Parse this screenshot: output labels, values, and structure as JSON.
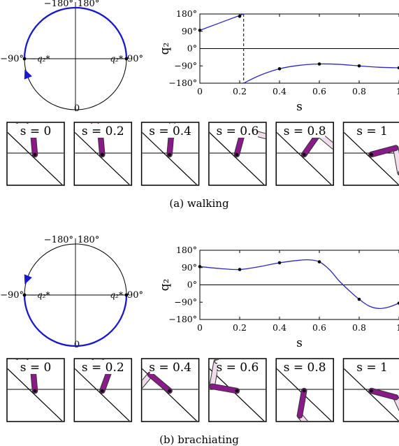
{
  "colors": {
    "trajectory": "#2a2ab8",
    "arrow": "#1818d0",
    "stance_leg": "#8a1a8a",
    "swing_leg": "#f0dcea",
    "leg_outline": "#333333"
  },
  "panels": [
    {
      "caption": "(a) walking",
      "circle": {
        "top_left_label": "−180°",
        "top_right_label": "180°",
        "left_label": "−90°",
        "right_label": "90°",
        "bottom_label": "0",
        "left_point_label": "−q₂*",
        "right_point_label": "q₂*",
        "arc": {
          "from_deg": 90,
          "to_deg": -90,
          "via": "top",
          "arrow_at": "end"
        }
      },
      "chart_data": {
        "type": "line",
        "title": "",
        "xlabel": "s",
        "ylabel": "q₂",
        "xlim": [
          0,
          1
        ],
        "ylim": [
          -180,
          180
        ],
        "xticks": [
          0,
          0.2,
          0.4,
          0.6,
          0.8,
          1
        ],
        "xtick_labels": [
          "0",
          "0.2",
          "0.4",
          "0.6",
          "0.8",
          "1"
        ],
        "yticks": [
          -180,
          -90,
          0,
          90,
          180
        ],
        "ytick_labels": [
          "−180°",
          "−90°",
          "0°",
          "90°",
          "180°"
        ],
        "discontinuity_x": 0.22,
        "points": [
          {
            "x": 0,
            "y": 95
          },
          {
            "x": 0.2,
            "y": 168
          },
          {
            "x": 0.4,
            "y": -105
          },
          {
            "x": 0.6,
            "y": -80
          },
          {
            "x": 0.8,
            "y": -90
          },
          {
            "x": 1,
            "y": -100
          }
        ],
        "segments": [
          [
            [
              0,
              95
            ],
            [
              0.22,
              180
            ]
          ],
          [
            [
              0.22,
              -180
            ],
            [
              0.3,
              -140
            ],
            [
              0.4,
              -105
            ],
            [
              0.5,
              -87
            ],
            [
              0.6,
              -80
            ],
            [
              0.7,
              -82
            ],
            [
              0.8,
              -90
            ],
            [
              0.9,
              -97
            ],
            [
              1,
              -100
            ]
          ]
        ]
      },
      "frames": [
        {
          "label": "s = 0",
          "stance_deg": 95,
          "swing_deg": 150
        },
        {
          "label": "s = 0.2",
          "stance_deg": 95,
          "swing_deg": 130
        },
        {
          "label": "s = 0.4",
          "stance_deg": 85,
          "swing_deg": 85
        },
        {
          "label": "s = 0.6",
          "stance_deg": 75,
          "swing_deg": -15
        },
        {
          "label": "s = 0.8",
          "stance_deg": 55,
          "swing_deg": -40
        },
        {
          "label": "s = 1",
          "stance_deg": 15,
          "swing_deg": -80
        }
      ]
    },
    {
      "caption": "(b) brachiating",
      "circle": {
        "top_left_label": "−180°",
        "top_right_label": "180°",
        "left_label": "−90°",
        "right_label": "90°",
        "bottom_label": "0",
        "left_point_label": "−q₂*",
        "right_point_label": "q₂*",
        "arc": {
          "from_deg": 90,
          "to_deg": -90,
          "via": "bottom",
          "arrow_at": "end"
        }
      },
      "chart_data": {
        "type": "line",
        "title": "",
        "xlabel": "s",
        "ylabel": "q₂",
        "xlim": [
          0,
          1
        ],
        "ylim": [
          -180,
          180
        ],
        "xticks": [
          0,
          0.2,
          0.4,
          0.6,
          0.8,
          1
        ],
        "xtick_labels": [
          "0",
          "0.2",
          "0.4",
          "0.6",
          "0.8",
          "1"
        ],
        "yticks": [
          -180,
          -90,
          0,
          90,
          180
        ],
        "ytick_labels": [
          "−180°",
          "−90°",
          "0°",
          "90°",
          "180°"
        ],
        "discontinuity_x": null,
        "points": [
          {
            "x": 0,
            "y": 95
          },
          {
            "x": 0.2,
            "y": 80
          },
          {
            "x": 0.4,
            "y": 115
          },
          {
            "x": 0.6,
            "y": 120
          },
          {
            "x": 0.8,
            "y": -75
          },
          {
            "x": 1,
            "y": -95
          }
        ],
        "segments": [
          [
            [
              0,
              95
            ],
            [
              0.1,
              85
            ],
            [
              0.2,
              80
            ],
            [
              0.3,
              95
            ],
            [
              0.4,
              115
            ],
            [
              0.5,
              128
            ],
            [
              0.55,
              130
            ],
            [
              0.6,
              120
            ],
            [
              0.65,
              80
            ],
            [
              0.7,
              20
            ],
            [
              0.75,
              -30
            ],
            [
              0.8,
              -75
            ],
            [
              0.85,
              -110
            ],
            [
              0.9,
              -123
            ],
            [
              0.95,
              -115
            ],
            [
              1,
              -95
            ]
          ]
        ]
      },
      "frames": [
        {
          "label": "s = 0",
          "stance_deg": 95,
          "swing_deg": 150
        },
        {
          "label": "s = 0.2",
          "stance_deg": 70,
          "swing_deg": 150
        },
        {
          "label": "s = 0.4",
          "stance_deg": 140,
          "swing_deg": 230
        },
        {
          "label": "s = 0.6",
          "stance_deg": 170,
          "swing_deg": 80
        },
        {
          "label": "s = 0.8",
          "stance_deg": 260,
          "swing_deg": 310
        },
        {
          "label": "s = 1",
          "stance_deg": 345,
          "swing_deg": 295
        }
      ]
    }
  ]
}
